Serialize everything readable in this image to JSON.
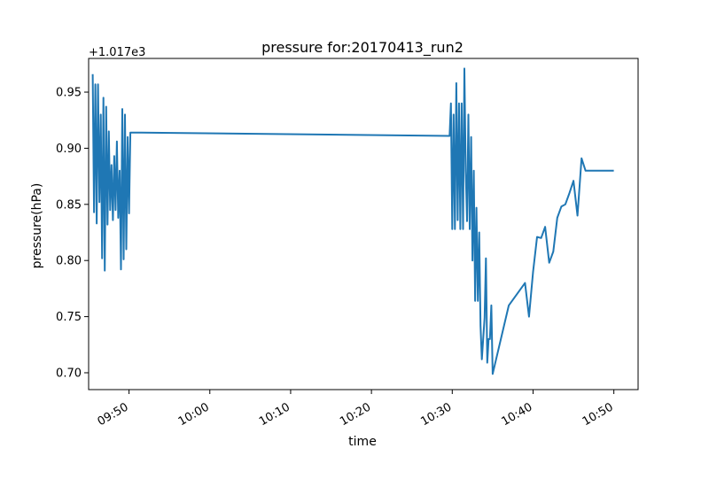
{
  "chart_data": {
    "type": "line",
    "title": "pressure for:20170413_run2",
    "xlabel": "time",
    "ylabel": "pressure(hPa)",
    "y_offset_label": "+1.017e3",
    "y_axis_offset": 1017,
    "xlim": [
      "09:45",
      "10:53"
    ],
    "ylim": [
      0.685,
      0.98
    ],
    "x_ticks": [
      "09:50",
      "10:00",
      "10:10",
      "10:20",
      "10:30",
      "10:40",
      "10:50"
    ],
    "y_ticks": [
      "0.70",
      "0.75",
      "0.80",
      "0.85",
      "0.90",
      "0.95"
    ],
    "grid": false,
    "color": "#1f77b4",
    "series": [
      {
        "x": [
          "09:45:30",
          "09:45:40",
          "09:45:50",
          "09:46:00",
          "09:46:10",
          "09:46:20",
          "09:46:30",
          "09:46:40",
          "09:46:50",
          "09:47:00",
          "09:47:10",
          "09:47:20",
          "09:47:30",
          "09:47:40",
          "09:47:50",
          "09:48:00",
          "09:48:10",
          "09:48:20",
          "09:48:30",
          "09:48:40",
          "09:48:50",
          "09:49:00",
          "09:49:10",
          "09:49:20",
          "09:49:30",
          "09:49:40",
          "09:49:50",
          "09:50:00",
          "09:50:10",
          "09:51:30",
          "10:29:40",
          "10:29:50",
          "10:30:00",
          "10:30:10",
          "10:30:20",
          "10:30:30",
          "10:30:40",
          "10:30:50",
          "10:31:00",
          "10:31:10",
          "10:31:20",
          "10:31:30",
          "10:31:40",
          "10:31:50",
          "10:32:00",
          "10:32:10",
          "10:32:20",
          "10:32:30",
          "10:32:40",
          "10:32:50",
          "10:33:00",
          "10:33:10",
          "10:33:20",
          "10:33:30",
          "10:33:40",
          "10:33:50",
          "10:34:00",
          "10:34:10",
          "10:34:20",
          "10:34:30",
          "10:34:40",
          "10:34:50",
          "10:35:00",
          "10:37:00",
          "10:39:00",
          "10:39:30",
          "10:40:00",
          "10:40:30",
          "10:41:00",
          "10:41:30",
          "10:42:00",
          "10:42:30",
          "10:43:00",
          "10:43:30",
          "10:44:00",
          "10:44:30",
          "10:45:00",
          "10:45:30",
          "10:46:00",
          "10:46:30",
          "10:47:00",
          "10:47:30",
          "10:48:00",
          "10:48:30",
          "10:49:00",
          "10:49:30",
          "10:50:00"
        ],
        "values": [
          0.966,
          0.843,
          0.957,
          0.833,
          0.957,
          0.852,
          0.93,
          0.802,
          0.945,
          0.791,
          0.937,
          0.832,
          0.915,
          0.845,
          0.885,
          0.836,
          0.893,
          0.845,
          0.906,
          0.838,
          0.88,
          0.792,
          0.935,
          0.801,
          0.93,
          0.81,
          0.91,
          0.842,
          0.914,
          0.914,
          0.911,
          0.94,
          0.828,
          0.93,
          0.828,
          0.958,
          0.836,
          0.94,
          0.828,
          0.94,
          0.828,
          0.971,
          0.88,
          0.835,
          0.93,
          0.828,
          0.91,
          0.8,
          0.88,
          0.764,
          0.847,
          0.764,
          0.825,
          0.742,
          0.712,
          0.73,
          0.749,
          0.802,
          0.709,
          0.73,
          0.73,
          0.76,
          0.699,
          0.76,
          0.78,
          0.75,
          0.79,
          0.821,
          0.82,
          0.83,
          0.798,
          0.808,
          0.838,
          0.848,
          0.85,
          0.86,
          0.871,
          0.84,
          0.891,
          0.88,
          0.88,
          0.88,
          0.88,
          0.88,
          0.88,
          0.88,
          0.88
        ]
      }
    ]
  }
}
